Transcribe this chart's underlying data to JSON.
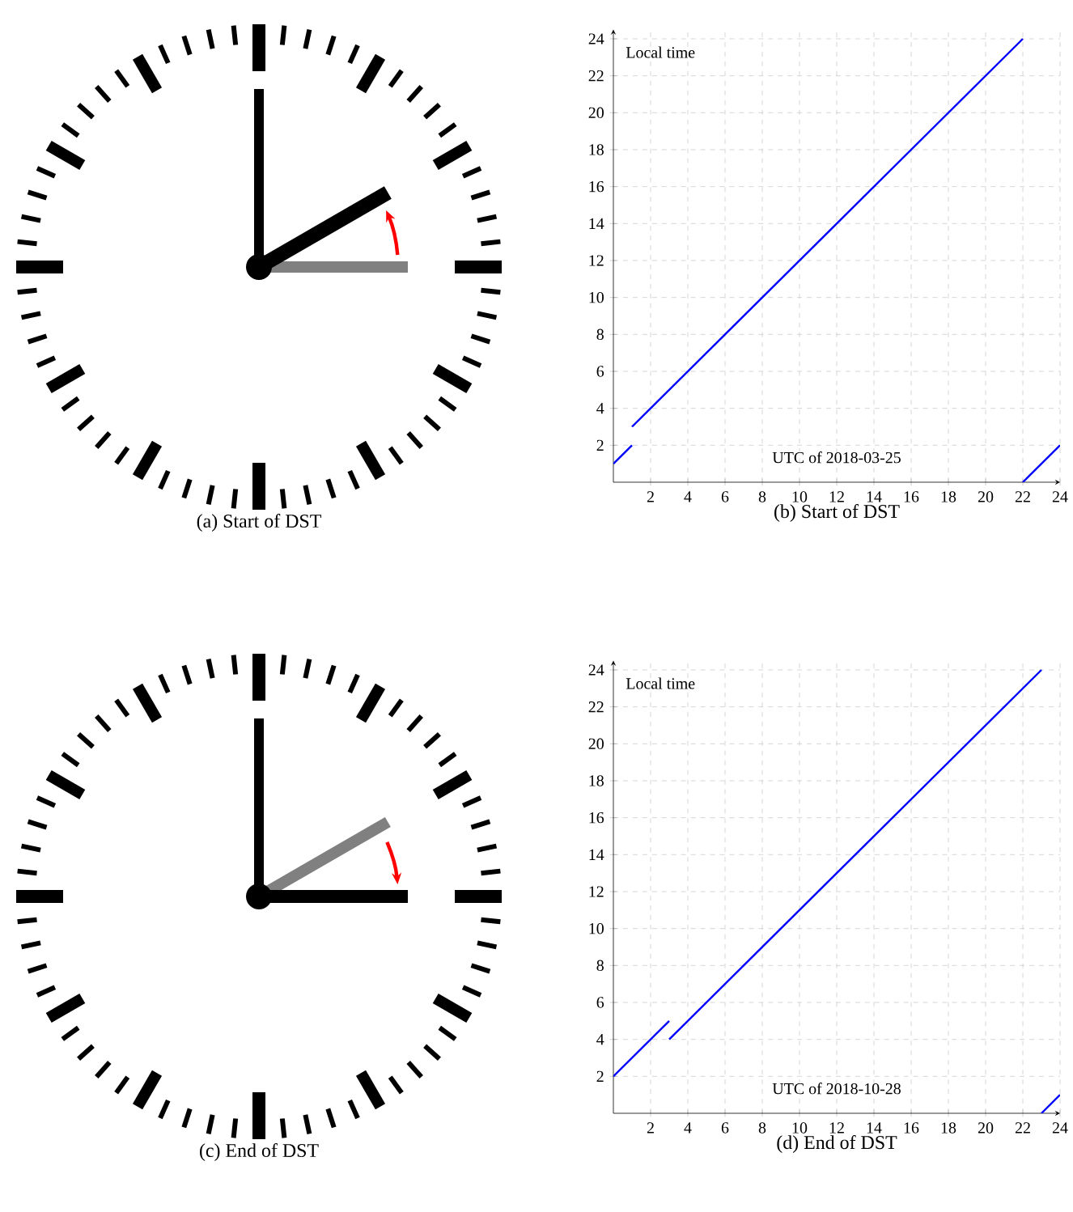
{
  "chart_data": [
    {
      "type": "other",
      "title": "(a) Start of DST"
    },
    {
      "type": "line",
      "title": "(b) Start of DST",
      "xlabel": "UTC of 2018-03-25",
      "ylabel": "Local time",
      "xlim": [
        0,
        24
      ],
      "ylim": [
        0,
        24.5
      ],
      "xticks": [
        2,
        4,
        6,
        8,
        10,
        12,
        14,
        16,
        18,
        20,
        22,
        24
      ],
      "yticks": [
        2,
        4,
        6,
        8,
        10,
        12,
        14,
        16,
        18,
        20,
        22,
        24
      ],
      "grid": true,
      "series": [
        {
          "color": "#0000ff",
          "x": [
            0,
            1
          ],
          "values": [
            1,
            2
          ]
        },
        {
          "color": "#0000ff",
          "x": [
            1,
            22
          ],
          "values": [
            3,
            24
          ]
        },
        {
          "color": "#0000ff",
          "x": [
            22,
            24
          ],
          "values": [
            0,
            2
          ]
        }
      ]
    },
    {
      "type": "other",
      "title": "(c) End of DST"
    },
    {
      "type": "line",
      "title": "(d) End of DST",
      "xlabel": "UTC of 2018-10-28",
      "ylabel": "Local time",
      "xlim": [
        0,
        24
      ],
      "ylim": [
        0,
        24.5
      ],
      "xticks": [
        2,
        4,
        6,
        8,
        10,
        12,
        14,
        16,
        18,
        20,
        22,
        24
      ],
      "yticks": [
        2,
        4,
        6,
        8,
        10,
        12,
        14,
        16,
        18,
        20,
        22,
        24
      ],
      "grid": true,
      "series": [
        {
          "color": "#0000ff",
          "x": [
            0,
            3
          ],
          "values": [
            2,
            5
          ]
        },
        {
          "color": "#0000ff",
          "x": [
            3,
            23
          ],
          "values": [
            4,
            24
          ]
        },
        {
          "color": "#0000ff",
          "x": [
            23,
            24
          ],
          "values": [
            0,
            1
          ]
        }
      ]
    }
  ]
}
